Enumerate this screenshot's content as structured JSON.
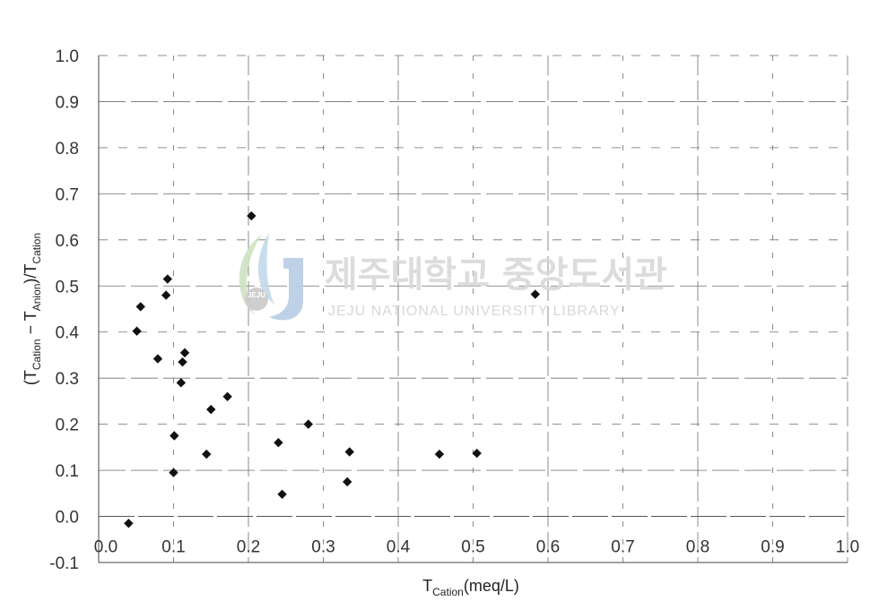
{
  "chart_data": {
    "type": "scatter",
    "xlabel": {
      "main": "T",
      "sub": "Cation",
      "tail": "(meq/L)"
    },
    "ylabel": {
      "p1": "(T",
      "s1": "Cation",
      "p2": " − T",
      "s2": "Anion",
      "p3": ")/T",
      "s3": "Cation"
    },
    "xlim": [
      0.0,
      1.0
    ],
    "ylim": [
      -0.1,
      1.0
    ],
    "x_ticks": [
      0.0,
      0.1,
      0.2,
      0.3,
      0.4,
      0.5,
      0.6,
      0.7,
      0.8,
      0.9,
      1.0
    ],
    "x_tick_labels": [
      "0.0",
      "0.1",
      "0.2",
      "0.3",
      "0.4",
      "0.5",
      "0.6",
      "0.7",
      "0.8",
      "0.9",
      "1.0"
    ],
    "y_ticks": [
      -0.1,
      0.0,
      0.1,
      0.2,
      0.3,
      0.4,
      0.5,
      0.6,
      0.7,
      0.8,
      0.9,
      1.0
    ],
    "y_tick_labels": [
      "-0.1",
      "0.0",
      "0.1",
      "0.2",
      "0.3",
      "0.4",
      "0.5",
      "0.6",
      "0.7",
      "0.8",
      "0.9",
      "1.0"
    ],
    "grid": true,
    "marker_color": "#111111",
    "points": [
      {
        "x": 0.04,
        "y": -0.015
      },
      {
        "x": 0.051,
        "y": 0.402
      },
      {
        "x": 0.056,
        "y": 0.455
      },
      {
        "x": 0.079,
        "y": 0.342
      },
      {
        "x": 0.09,
        "y": 0.48
      },
      {
        "x": 0.092,
        "y": 0.515
      },
      {
        "x": 0.1,
        "y": 0.095
      },
      {
        "x": 0.101,
        "y": 0.175
      },
      {
        "x": 0.11,
        "y": 0.29
      },
      {
        "x": 0.112,
        "y": 0.335
      },
      {
        "x": 0.115,
        "y": 0.355
      },
      {
        "x": 0.144,
        "y": 0.135
      },
      {
        "x": 0.15,
        "y": 0.232
      },
      {
        "x": 0.172,
        "y": 0.26
      },
      {
        "x": 0.204,
        "y": 0.652
      },
      {
        "x": 0.24,
        "y": 0.16
      },
      {
        "x": 0.245,
        "y": 0.048
      },
      {
        "x": 0.28,
        "y": 0.2
      },
      {
        "x": 0.332,
        "y": 0.075
      },
      {
        "x": 0.335,
        "y": 0.14
      },
      {
        "x": 0.455,
        "y": 0.135
      },
      {
        "x": 0.505,
        "y": 0.137
      },
      {
        "x": 0.583,
        "y": 0.482
      }
    ]
  },
  "watermark": {
    "korean": "제주대학교 중앙도서관",
    "english": "JEJU NATIONAL UNIVERSITY LIBRARY",
    "badge_top": "JEJU",
    "badge_mid": "JEJU"
  }
}
